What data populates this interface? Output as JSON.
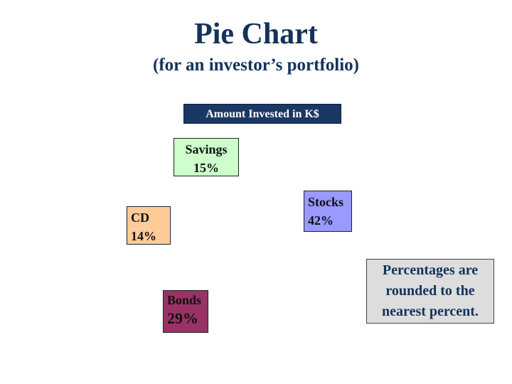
{
  "title": "Pie Chart",
  "subtitle": "(for an investor’s portfolio)",
  "note": "Percentages are rounded to the nearest percent.",
  "chart_data": {
    "type": "pie",
    "title": "Amount Invested in K$",
    "slices": [
      {
        "label": "Savings",
        "value": 15,
        "value_label": "15%",
        "color": "#ccffcc"
      },
      {
        "label": "Stocks",
        "value": 42,
        "value_label": "42%",
        "color": "#9999ff"
      },
      {
        "label": "Bonds",
        "value": 29,
        "value_label": "29%",
        "color": "#993366"
      },
      {
        "label": "CD",
        "value": 14,
        "value_label": "14%",
        "color": "#ffcc99"
      }
    ]
  }
}
